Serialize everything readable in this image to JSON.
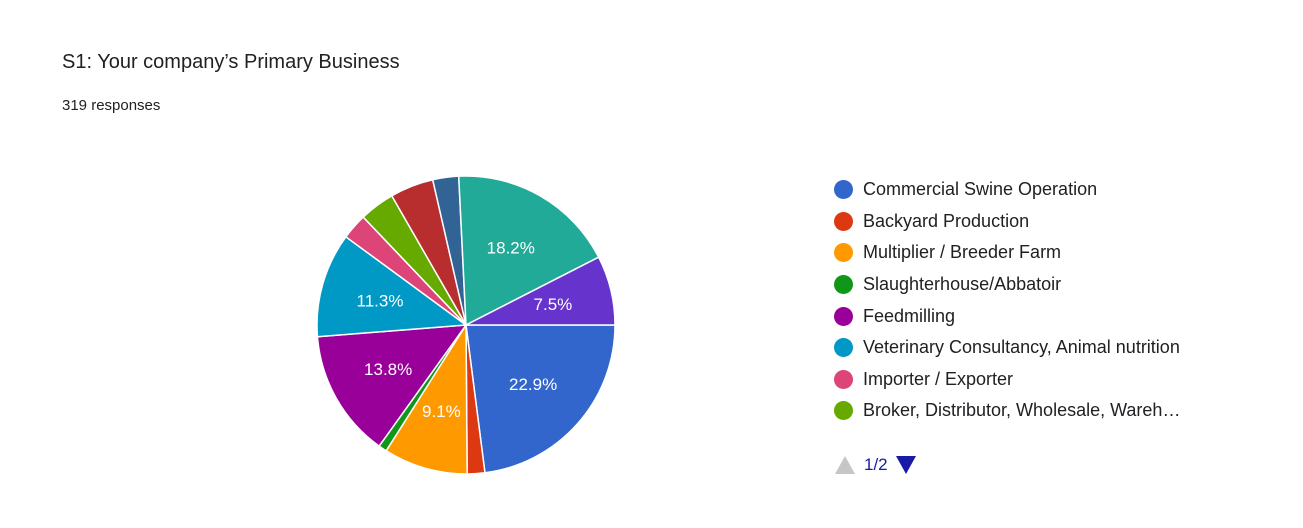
{
  "question": "S1: Your company’s Primary Business",
  "responses_label": "319 responses",
  "pager": {
    "text": "1/2"
  },
  "chart_data": {
    "type": "pie",
    "title": "S1: Your company’s Primary Business",
    "legend_position": "right",
    "legend_visible": [
      {
        "label": "Commercial Swine Operation",
        "color": "#3366cc"
      },
      {
        "label": "Backyard Production",
        "color": "#dc3912"
      },
      {
        "label": "Multiplier / Breeder Farm",
        "color": "#ff9900"
      },
      {
        "label": "Slaughterhouse/Abbatoir",
        "color": "#109618"
      },
      {
        "label": "Feedmilling",
        "color": "#990099"
      },
      {
        "label": "Veterinary Consultancy, Animal nutrition",
        "color": "#0099c6"
      },
      {
        "label": "Importer / Exporter",
        "color": "#dd4477"
      },
      {
        "label": "Broker, Distributor, Wholesale, Wareh…",
        "color": "#66aa00"
      }
    ],
    "slices": [
      {
        "value": 22.9,
        "color": "#3366cc",
        "label": "22.9%"
      },
      {
        "value": 1.9,
        "color": "#dc3912",
        "label": ""
      },
      {
        "value": 9.1,
        "color": "#ff9900",
        "label": "9.1%"
      },
      {
        "value": 0.9,
        "color": "#109618",
        "label": ""
      },
      {
        "value": 13.8,
        "color": "#990099",
        "label": "13.8%"
      },
      {
        "value": 11.3,
        "color": "#0099c6",
        "label": "11.3%"
      },
      {
        "value": 2.8,
        "color": "#dd4477",
        "label": ""
      },
      {
        "value": 3.8,
        "color": "#66aa00",
        "label": ""
      },
      {
        "value": 4.7,
        "color": "#b82e2e",
        "label": ""
      },
      {
        "value": 2.8,
        "color": "#316395",
        "label": ""
      },
      {
        "value": 18.2,
        "color": "#22aa99",
        "label": "18.2%"
      },
      {
        "value": 7.5,
        "color": "#6633cc",
        "label": "7.5%"
      }
    ]
  }
}
